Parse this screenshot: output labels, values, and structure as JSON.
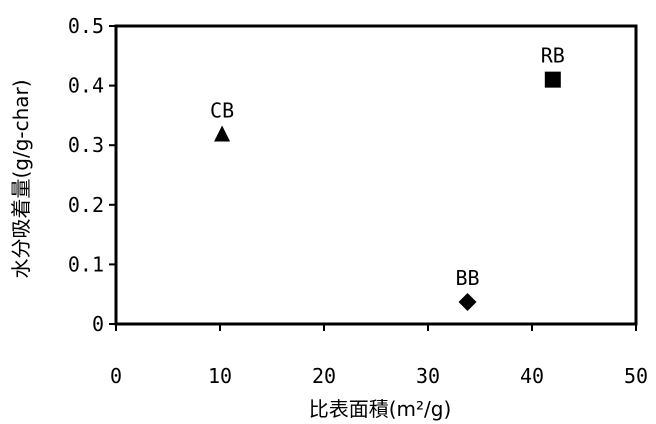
{
  "chart_data": {
    "type": "scatter",
    "title": "",
    "xlabel": "比表面積(m²/g)",
    "ylabel": "水分吸着量(g/g-char)",
    "xlim": [
      0,
      50
    ],
    "ylim": [
      0,
      0.5
    ],
    "x_ticks": [
      "0",
      "10",
      "20",
      "30",
      "40",
      "50"
    ],
    "y_ticks": [
      "0",
      "0.1",
      "0.2",
      "0.3",
      "0.4",
      "0.5"
    ],
    "grid": false,
    "legend": "none",
    "points": [
      {
        "label": "CB",
        "x": 10.2,
        "y": 0.318,
        "marker": "triangle"
      },
      {
        "label": "BB",
        "x": 33.8,
        "y": 0.037,
        "marker": "diamond"
      },
      {
        "label": "RB",
        "x": 42.0,
        "y": 0.41,
        "marker": "square"
      }
    ],
    "colors": {
      "marker": "#000000",
      "axis": "#000000",
      "background": "#ffffff"
    }
  }
}
